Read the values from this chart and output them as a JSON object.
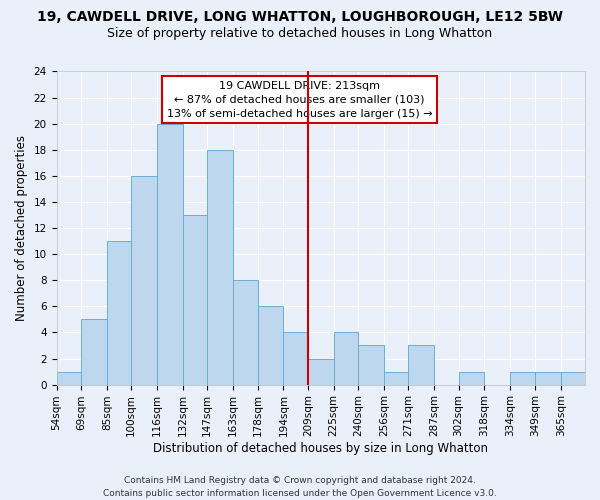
{
  "title": "19, CAWDELL DRIVE, LONG WHATTON, LOUGHBOROUGH, LE12 5BW",
  "subtitle": "Size of property relative to detached houses in Long Whatton",
  "xlabel": "Distribution of detached houses by size in Long Whatton",
  "ylabel": "Number of detached properties",
  "bin_labels": [
    "54sqm",
    "69sqm",
    "85sqm",
    "100sqm",
    "116sqm",
    "132sqm",
    "147sqm",
    "163sqm",
    "178sqm",
    "194sqm",
    "209sqm",
    "225sqm",
    "240sqm",
    "256sqm",
    "271sqm",
    "287sqm",
    "302sqm",
    "318sqm",
    "334sqm",
    "349sqm",
    "365sqm"
  ],
  "bar_heights": [
    1,
    5,
    11,
    16,
    20,
    13,
    18,
    8,
    6,
    4,
    2,
    4,
    3,
    1,
    3,
    0,
    1,
    0,
    1,
    1,
    1
  ],
  "bar_color": "#BDD7EE",
  "bar_edge_color": "#6BAED6",
  "vline_color": "#CC0000",
  "annotation_title": "19 CAWDELL DRIVE: 213sqm",
  "annotation_line1": "← 87% of detached houses are smaller (103)",
  "annotation_line2": "13% of semi-detached houses are larger (15) →",
  "annotation_box_color": "#CC0000",
  "ylim": [
    0,
    24
  ],
  "yticks": [
    0,
    2,
    4,
    6,
    8,
    10,
    12,
    14,
    16,
    18,
    20,
    22,
    24
  ],
  "bin_edges": [
    54,
    69,
    85,
    100,
    116,
    132,
    147,
    163,
    178,
    194,
    209,
    225,
    240,
    256,
    271,
    287,
    302,
    318,
    334,
    349,
    365,
    380
  ],
  "vline_x_idx": 10,
  "footer_line1": "Contains HM Land Registry data © Crown copyright and database right 2024.",
  "footer_line2": "Contains public sector information licensed under the Open Government Licence v3.0.",
  "bg_color": "#EAF0FA",
  "grid_color": "#FFFFFF",
  "title_fontsize": 10,
  "subtitle_fontsize": 9,
  "label_fontsize": 8.5,
  "tick_fontsize": 7.5,
  "footer_fontsize": 6.5
}
